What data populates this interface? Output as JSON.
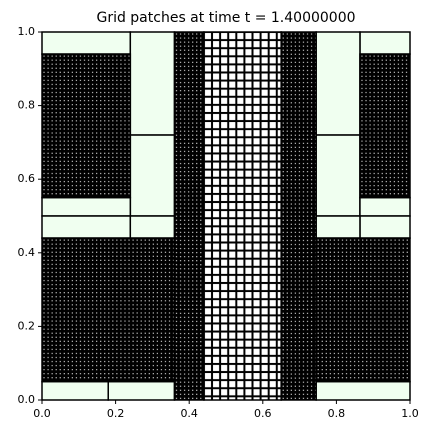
{
  "chart_data": {
    "type": "patches",
    "title": "Grid patches at time t =      1.40000000",
    "xlim": [
      0,
      1
    ],
    "ylim": [
      0,
      1
    ],
    "xticks": [
      {
        "value": 0,
        "label": "0.0"
      },
      {
        "value": 0.2,
        "label": "0.2"
      },
      {
        "value": 0.4,
        "label": "0.4"
      },
      {
        "value": 0.6,
        "label": "0.6"
      },
      {
        "value": 0.8,
        "label": "0.8"
      },
      {
        "value": 1,
        "label": "1.0"
      }
    ],
    "yticks": [
      {
        "value": 0,
        "label": "0.0"
      },
      {
        "value": 0.2,
        "label": "0.2"
      },
      {
        "value": 0.4,
        "label": "0.4"
      },
      {
        "value": 0.6,
        "label": "0.6"
      },
      {
        "value": 0.8,
        "label": "0.8"
      },
      {
        "value": 1,
        "label": "1.0"
      }
    ],
    "coarse_color": "#f0fff0",
    "patches": [
      {
        "x0": 0,
        "x1": 0.24,
        "y0": 0.94,
        "y1": 1
      },
      {
        "x0": 0.24,
        "x1": 0.36,
        "y0": 0.72,
        "y1": 1
      },
      {
        "x0": 0.24,
        "x1": 0.36,
        "y0": 0.5,
        "y1": 0.72
      },
      {
        "x0": 0,
        "x1": 0.24,
        "y0": 0.5,
        "y1": 0.55
      },
      {
        "x0": 0,
        "x1": 0.24,
        "y0": 0.44,
        "y1": 0.5
      },
      {
        "x0": 0.24,
        "x1": 0.36,
        "y0": 0.44,
        "y1": 0.5
      },
      {
        "x0": 0,
        "x1": 0.18,
        "y0": 0,
        "y1": 0.05
      },
      {
        "x0": 0.18,
        "x1": 0.36,
        "y0": 0,
        "y1": 0.05
      },
      {
        "x0": 0.864,
        "x1": 1,
        "y0": 0.94,
        "y1": 1
      },
      {
        "x0": 0.745,
        "x1": 0.864,
        "y0": 0.72,
        "y1": 1
      },
      {
        "x0": 0.745,
        "x1": 0.864,
        "y0": 0.5,
        "y1": 0.72
      },
      {
        "x0": 0.864,
        "x1": 1,
        "y0": 0.5,
        "y1": 0.55
      },
      {
        "x0": 0.864,
        "x1": 1,
        "y0": 0.44,
        "y1": 0.5
      },
      {
        "x0": 0.745,
        "x1": 0.864,
        "y0": 0.44,
        "y1": 0.5
      },
      {
        "x0": 0.745,
        "x1": 1,
        "y0": 0,
        "y1": 0.05
      },
      {
        "x0": 0,
        "x1": 0.24,
        "y0": 0.55,
        "y1": 0.94,
        "cell": 0.011
      },
      {
        "x0": 0,
        "x1": 0.36,
        "y0": 0.05,
        "y1": 0.44,
        "cell": 0.011
      },
      {
        "x0": 0.36,
        "x1": 0.44,
        "y0": 0,
        "y1": 1,
        "cell": 0.011
      },
      {
        "x0": 0.44,
        "x1": 0.65,
        "y0": 0,
        "y1": 1,
        "cell": 0.022
      },
      {
        "x0": 0.65,
        "x1": 0.745,
        "y0": 0,
        "y1": 1,
        "cell": 0.011
      },
      {
        "x0": 0.745,
        "x1": 1,
        "y0": 0.05,
        "y1": 0.44,
        "cell": 0.011
      },
      {
        "x0": 0.864,
        "x1": 1,
        "y0": 0.55,
        "y1": 0.94,
        "cell": 0.011
      }
    ]
  }
}
